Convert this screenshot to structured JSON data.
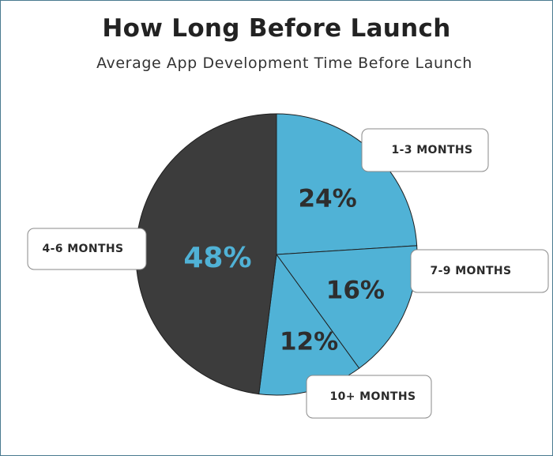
{
  "title": "How Long Before Launch",
  "subtitle": "Average App Development Time Before Launch",
  "colors": {
    "dark": "#3c3c3c",
    "blue": "#50b2d6",
    "text_dark": "#2e2e2e"
  },
  "chart_data": {
    "type": "pie",
    "title": "How Long Before Launch",
    "subtitle": "Average App Development Time Before Launch",
    "slices": [
      {
        "label": "1-3 MONTHS",
        "value": 24,
        "display": "24%",
        "color": "#50b2d6"
      },
      {
        "label": "7-9 MONTHS",
        "value": 16,
        "display": "16%",
        "color": "#50b2d6"
      },
      {
        "label": "10+ MONTHS",
        "value": 12,
        "display": "12%",
        "color": "#50b2d6"
      },
      {
        "label": "4-6 MONTHS",
        "value": 48,
        "display": "48%",
        "color": "#3c3c3c"
      }
    ]
  }
}
